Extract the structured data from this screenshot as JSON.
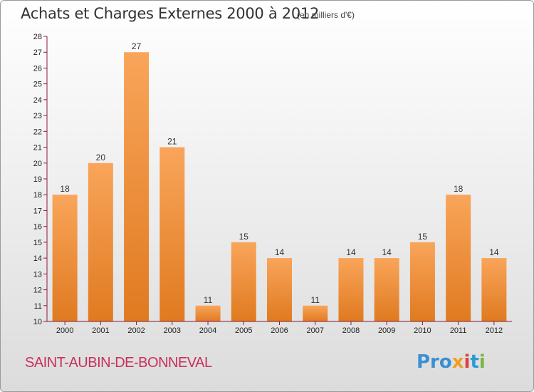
{
  "header": {
    "title": "Achats et Charges Externes 2000 à 2012",
    "unit": "(en milliers d'€)"
  },
  "footer": {
    "commune": "SAINT-AUBIN-DE-BONNEVAL",
    "logo": [
      "Pro",
      "x",
      "i",
      "t",
      "i"
    ]
  },
  "colors": {
    "bar_top": "#f9a55a",
    "bar_bottom": "#e07a20",
    "axis": "#8b1a3a",
    "commune": "#c8305a"
  },
  "chart_data": {
    "type": "bar",
    "categories": [
      "2000",
      "2001",
      "2002",
      "2003",
      "2004",
      "2005",
      "2006",
      "2007",
      "2008",
      "2009",
      "2010",
      "2011",
      "2012"
    ],
    "values": [
      18,
      20,
      27,
      21,
      11,
      15,
      14,
      11,
      14,
      14,
      15,
      18,
      14
    ],
    "ylim": [
      10,
      28
    ],
    "yticks": [
      10,
      11,
      12,
      13,
      14,
      15,
      16,
      17,
      18,
      19,
      20,
      21,
      22,
      23,
      24,
      25,
      26,
      27,
      28
    ],
    "grid": false,
    "data_labels": true
  }
}
